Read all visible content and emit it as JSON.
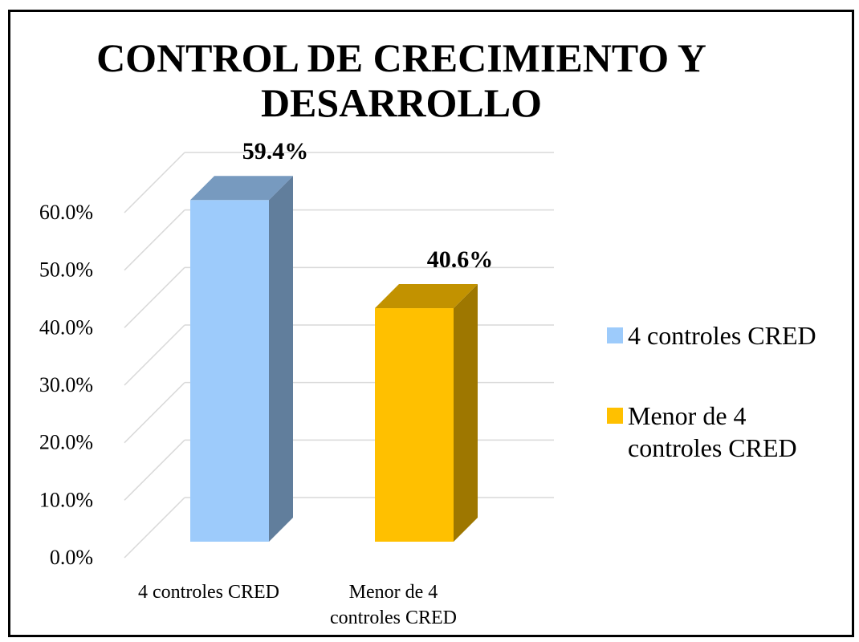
{
  "chart_data": {
    "type": "bar3d",
    "title": "CONTROL DE CRECIMIENTO Y DESARROLLO",
    "categories": [
      "4 controles CRED",
      "Menor de 4 controles CRED"
    ],
    "values": [
      59.4,
      40.6
    ],
    "value_labels": [
      "59.4%",
      "40.6%"
    ],
    "colors": [
      "#9dcbfb",
      "#ffc000"
    ],
    "ylim": [
      0,
      60
    ],
    "yticks": [
      {
        "value": 0,
        "label": "0.0%"
      },
      {
        "value": 10,
        "label": "10.0%"
      },
      {
        "value": 20,
        "label": "20.0%"
      },
      {
        "value": 30,
        "label": "30.0%"
      },
      {
        "value": 40,
        "label": "40.0%"
      },
      {
        "value": 50,
        "label": "50.0%"
      },
      {
        "value": 60,
        "label": "60.0%"
      }
    ],
    "grid": true,
    "legend": "right"
  }
}
